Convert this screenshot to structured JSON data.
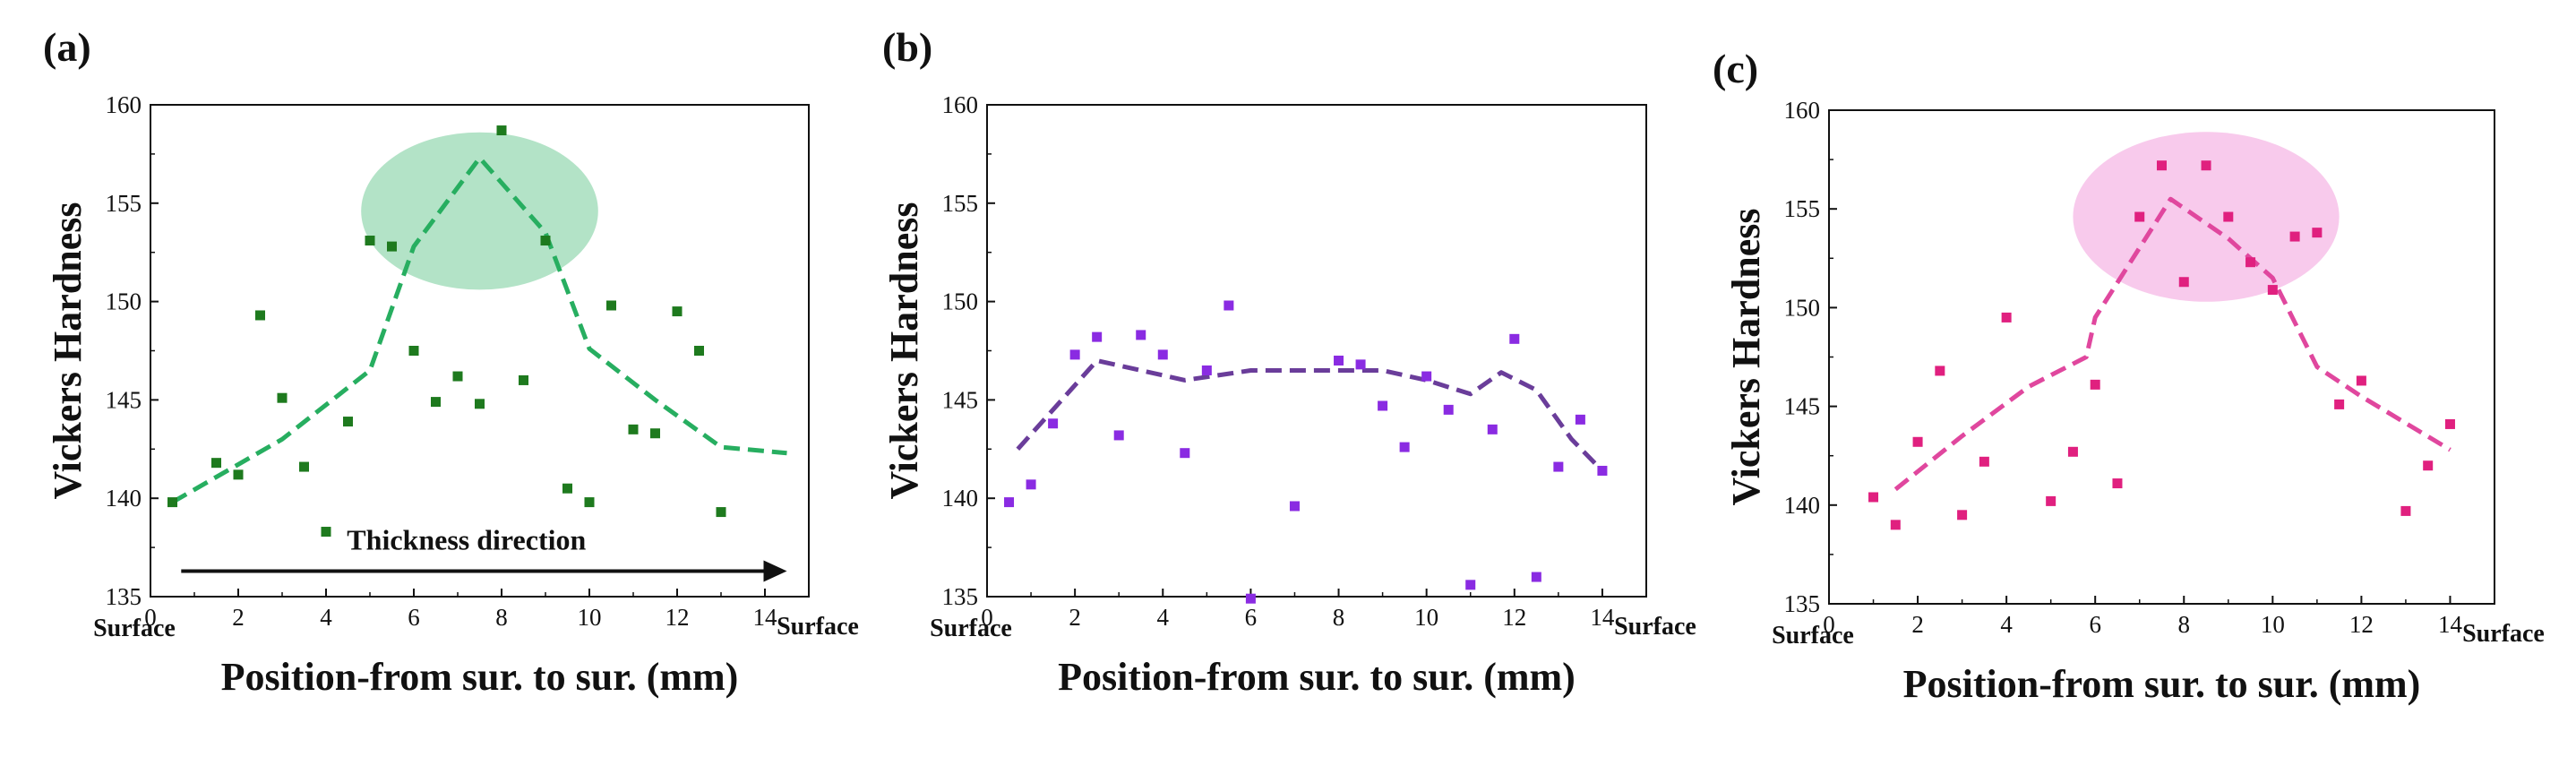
{
  "chart_data": [
    {
      "type": "scatter",
      "panel": "(a)",
      "xlabel": "Position-from sur. to sur. (mm)",
      "ylabel": "Vickers Hardness",
      "xlim": [
        0,
        15
      ],
      "ylim": [
        135,
        160
      ],
      "xticks": [
        0,
        2,
        4,
        6,
        8,
        10,
        12,
        14
      ],
      "yticks": [
        135,
        140,
        145,
        150,
        155,
        160
      ],
      "surface_left": "Surface",
      "surface_right": "Surface",
      "color": "#1e7a1e",
      "line_color": "#27ae60",
      "highlight_color": "#9ad9b4",
      "annotation": "Thickness direction",
      "highlight": {
        "cx": 7.5,
        "cy": 154.6,
        "rx": 2.7,
        "ry": 4.0
      },
      "points": [
        {
          "x": 0.5,
          "y": 139.8
        },
        {
          "x": 1.5,
          "y": 141.8
        },
        {
          "x": 2.0,
          "y": 141.2
        },
        {
          "x": 2.5,
          "y": 149.3
        },
        {
          "x": 3.0,
          "y": 145.1
        },
        {
          "x": 3.5,
          "y": 141.6
        },
        {
          "x": 4.0,
          "y": 138.3
        },
        {
          "x": 4.5,
          "y": 143.9
        },
        {
          "x": 5.0,
          "y": 153.1
        },
        {
          "x": 5.5,
          "y": 152.8
        },
        {
          "x": 6.0,
          "y": 147.5
        },
        {
          "x": 6.5,
          "y": 144.9
        },
        {
          "x": 7.0,
          "y": 146.2
        },
        {
          "x": 7.5,
          "y": 144.8
        },
        {
          "x": 8.0,
          "y": 158.7
        },
        {
          "x": 8.5,
          "y": 146.0
        },
        {
          "x": 9.0,
          "y": 153.1
        },
        {
          "x": 9.5,
          "y": 140.5
        },
        {
          "x": 10.0,
          "y": 139.8
        },
        {
          "x": 10.5,
          "y": 149.8
        },
        {
          "x": 11.0,
          "y": 143.5
        },
        {
          "x": 11.5,
          "y": 143.3
        },
        {
          "x": 12.0,
          "y": 149.5
        },
        {
          "x": 12.5,
          "y": 147.5
        },
        {
          "x": 13.0,
          "y": 139.3
        }
      ],
      "trend": [
        {
          "x": 0.5,
          "y": 139.8
        },
        {
          "x": 3.0,
          "y": 143.0
        },
        {
          "x": 5.0,
          "y": 146.5
        },
        {
          "x": 6.0,
          "y": 152.8
        },
        {
          "x": 7.5,
          "y": 157.3
        },
        {
          "x": 9.0,
          "y": 153.5
        },
        {
          "x": 10.0,
          "y": 147.6
        },
        {
          "x": 11.5,
          "y": 145.0
        },
        {
          "x": 13.0,
          "y": 142.6
        },
        {
          "x": 14.5,
          "y": 142.3
        }
      ]
    },
    {
      "type": "scatter",
      "panel": "(b)",
      "xlabel": "Position-from sur. to sur. (mm)",
      "ylabel": "Vickers Hardness",
      "xlim": [
        0,
        15
      ],
      "ylim": [
        135,
        160
      ],
      "xticks": [
        0,
        2,
        4,
        6,
        8,
        10,
        12,
        14
      ],
      "yticks": [
        135,
        140,
        145,
        150,
        155,
        160
      ],
      "surface_left": "Surface",
      "surface_right": "Surface",
      "color": "#8a2be2",
      "line_color": "#6a3d9a",
      "points": [
        {
          "x": 0.5,
          "y": 139.8
        },
        {
          "x": 1.0,
          "y": 140.7
        },
        {
          "x": 1.5,
          "y": 143.8
        },
        {
          "x": 2.0,
          "y": 147.3
        },
        {
          "x": 2.5,
          "y": 148.2
        },
        {
          "x": 3.0,
          "y": 143.2
        },
        {
          "x": 3.5,
          "y": 148.3
        },
        {
          "x": 4.0,
          "y": 147.3
        },
        {
          "x": 4.5,
          "y": 142.3
        },
        {
          "x": 5.0,
          "y": 146.5
        },
        {
          "x": 5.5,
          "y": 149.8
        },
        {
          "x": 6.0,
          "y": 134.9
        },
        {
          "x": 7.0,
          "y": 139.6
        },
        {
          "x": 8.0,
          "y": 147.0
        },
        {
          "x": 8.5,
          "y": 146.8
        },
        {
          "x": 9.0,
          "y": 144.7
        },
        {
          "x": 9.5,
          "y": 142.6
        },
        {
          "x": 10.0,
          "y": 146.2
        },
        {
          "x": 10.5,
          "y": 144.5
        },
        {
          "x": 11.0,
          "y": 135.6
        },
        {
          "x": 11.5,
          "y": 143.5
        },
        {
          "x": 12.0,
          "y": 148.1
        },
        {
          "x": 12.5,
          "y": 136.0
        },
        {
          "x": 13.0,
          "y": 141.6
        },
        {
          "x": 13.5,
          "y": 144.0
        },
        {
          "x": 14.0,
          "y": 141.4
        }
      ],
      "trend": [
        {
          "x": 0.7,
          "y": 142.5
        },
        {
          "x": 1.5,
          "y": 144.5
        },
        {
          "x": 2.5,
          "y": 147.0
        },
        {
          "x": 4.5,
          "y": 146.0
        },
        {
          "x": 6.0,
          "y": 146.5
        },
        {
          "x": 9.0,
          "y": 146.5
        },
        {
          "x": 10.0,
          "y": 146.0
        },
        {
          "x": 11.0,
          "y": 145.3
        },
        {
          "x": 11.7,
          "y": 146.4
        },
        {
          "x": 12.5,
          "y": 145.5
        },
        {
          "x": 13.3,
          "y": 143.0
        },
        {
          "x": 14.0,
          "y": 141.4
        }
      ]
    },
    {
      "type": "scatter",
      "panel": "(c)",
      "xlabel": "Position-from sur. to sur. (mm)",
      "ylabel": "Vickers Hardness",
      "xlim": [
        0,
        15
      ],
      "ylim": [
        135,
        160
      ],
      "xticks": [
        0,
        2,
        4,
        6,
        8,
        10,
        12,
        14
      ],
      "yticks": [
        135,
        140,
        145,
        150,
        155,
        160
      ],
      "surface_left": "Surface",
      "surface_right": "Surface",
      "color": "#e0207f",
      "line_color": "#e0479e",
      "highlight_color": "#f5b8e6",
      "highlight": {
        "cx": 8.5,
        "cy": 154.6,
        "rx": 3.0,
        "ry": 4.3
      },
      "points": [
        {
          "x": 1.0,
          "y": 140.4
        },
        {
          "x": 1.5,
          "y": 139.0
        },
        {
          "x": 2.0,
          "y": 143.2
        },
        {
          "x": 2.5,
          "y": 146.8
        },
        {
          "x": 3.0,
          "y": 139.5
        },
        {
          "x": 3.5,
          "y": 142.2
        },
        {
          "x": 4.0,
          "y": 149.5
        },
        {
          "x": 5.0,
          "y": 140.2
        },
        {
          "x": 5.5,
          "y": 142.7
        },
        {
          "x": 6.0,
          "y": 146.1
        },
        {
          "x": 6.5,
          "y": 141.1
        },
        {
          "x": 7.0,
          "y": 154.6
        },
        {
          "x": 7.5,
          "y": 157.2
        },
        {
          "x": 8.0,
          "y": 151.3
        },
        {
          "x": 8.5,
          "y": 157.2
        },
        {
          "x": 9.0,
          "y": 154.6
        },
        {
          "x": 9.5,
          "y": 152.3
        },
        {
          "x": 10.0,
          "y": 150.9
        },
        {
          "x": 10.5,
          "y": 153.6
        },
        {
          "x": 11.0,
          "y": 153.8
        },
        {
          "x": 11.5,
          "y": 145.1
        },
        {
          "x": 12.0,
          "y": 146.3
        },
        {
          "x": 13.0,
          "y": 139.7
        },
        {
          "x": 13.5,
          "y": 142.0
        },
        {
          "x": 14.0,
          "y": 144.1
        }
      ],
      "trend": [
        {
          "x": 1.5,
          "y": 140.8
        },
        {
          "x": 3.0,
          "y": 143.5
        },
        {
          "x": 4.5,
          "y": 146.0
        },
        {
          "x": 5.8,
          "y": 147.5
        },
        {
          "x": 6.0,
          "y": 149.5
        },
        {
          "x": 7.7,
          "y": 155.5
        },
        {
          "x": 9.0,
          "y": 153.5
        },
        {
          "x": 10.0,
          "y": 151.5
        },
        {
          "x": 11.0,
          "y": 147.0
        },
        {
          "x": 12.0,
          "y": 145.5
        },
        {
          "x": 14.0,
          "y": 142.8
        }
      ]
    }
  ]
}
